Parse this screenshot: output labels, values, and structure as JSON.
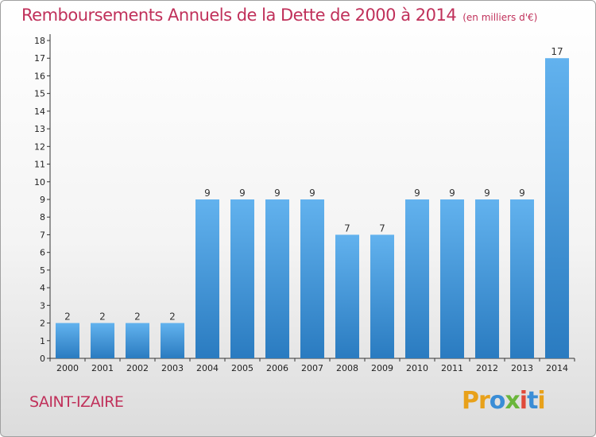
{
  "title": "Remboursements Annuels de la Dette de 2000 à 2014",
  "unit": "(en milliers d'€)",
  "commune": "SAINT-IZAIRE",
  "logo": {
    "letters": [
      "P",
      "r",
      "o",
      "x",
      "i",
      "t",
      "i"
    ],
    "colors": [
      "#e8a11a",
      "#e8a11a",
      "#3a8dd6",
      "#6ab63b",
      "#e04a3a",
      "#3a8dd6",
      "#e8a11a"
    ]
  },
  "colors": {
    "bar_light": "#62b2ee",
    "bar_dark": "#2a7bc0",
    "title": "#c0305a"
  },
  "chart_data": {
    "type": "bar",
    "categories": [
      "2000",
      "2001",
      "2002",
      "2003",
      "2004",
      "2005",
      "2006",
      "2007",
      "2008",
      "2009",
      "2010",
      "2011",
      "2012",
      "2013",
      "2014"
    ],
    "values": [
      2,
      2,
      2,
      2,
      9,
      9,
      9,
      9,
      7,
      7,
      9,
      9,
      9,
      9,
      17
    ],
    "data_labels": [
      "2",
      "2",
      "2",
      "2",
      "9",
      "9",
      "9",
      "9",
      "7",
      "7",
      "9",
      "9",
      "9",
      "9",
      "17"
    ],
    "title": "Remboursements Annuels de la Dette de 2000 à 2014",
    "xlabel": "",
    "ylabel": "",
    "ylim": [
      0,
      18
    ],
    "yticks": [
      "0",
      "1",
      "2",
      "3",
      "4",
      "5",
      "6",
      "7",
      "8",
      "9",
      "10",
      "11",
      "12",
      "13",
      "14",
      "15",
      "16",
      "17",
      "18"
    ],
    "grid": false
  }
}
